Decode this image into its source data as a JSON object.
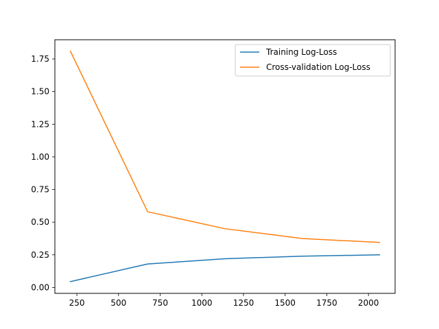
{
  "chart_data": {
    "type": "line",
    "title": "",
    "xlabel": "",
    "ylabel": "",
    "xlim": [
      118,
      2160
    ],
    "ylim": [
      -0.045,
      1.897
    ],
    "xticks": [
      250,
      500,
      750,
      1000,
      1250,
      1500,
      1750,
      2000
    ],
    "yticks": [
      0.0,
      0.25,
      0.5,
      0.75,
      1.0,
      1.25,
      1.5,
      1.75
    ],
    "xtick_labels": [
      "250",
      "500",
      "750",
      "1000",
      "1250",
      "1500",
      "1750",
      "2000"
    ],
    "ytick_labels": [
      "0.00",
      "0.25",
      "0.50",
      "0.75",
      "1.00",
      "1.25",
      "1.50",
      "1.75"
    ],
    "grid": false,
    "legend_position": "top-right",
    "x": [
      211,
      675,
      1139,
      1603,
      2067
    ],
    "series": [
      {
        "name": "Training Log-Loss",
        "color": "#1f77b4",
        "values": [
          0.045,
          0.18,
          0.22,
          0.24,
          0.25
        ]
      },
      {
        "name": "Cross-validation Log-Loss",
        "color": "#ff7f0e",
        "values": [
          1.81,
          0.58,
          0.45,
          0.375,
          0.345
        ]
      }
    ]
  }
}
